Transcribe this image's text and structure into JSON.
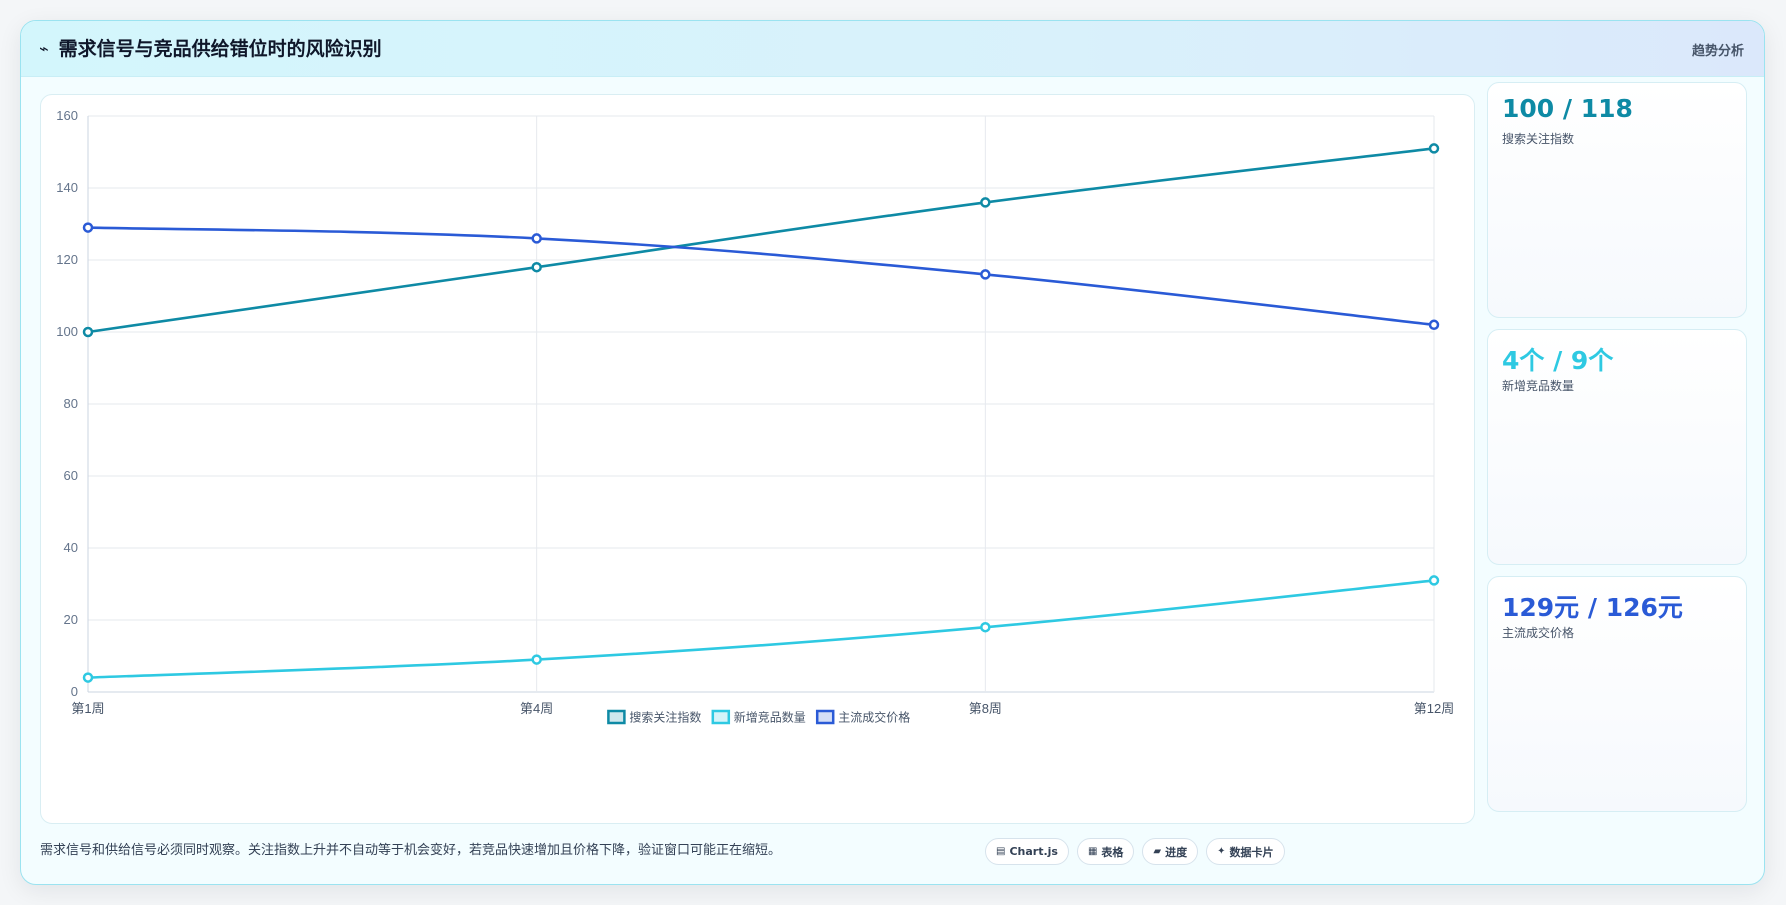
{
  "header": {
    "icon": "sparkline-icon",
    "title": "需求信号与竞品供给错位时的风险识别",
    "tag": "趋势分析"
  },
  "chart_data": {
    "type": "line",
    "categories": [
      "第1周",
      "第4周",
      "第8周",
      "第12周"
    ],
    "ylim": [
      0,
      160
    ],
    "yticks": [
      0,
      20,
      40,
      60,
      80,
      100,
      120,
      140,
      160
    ],
    "grid": true,
    "legend_position": "bottom",
    "series": [
      {
        "name": "搜索关注指数",
        "values": [
          100,
          118,
          136,
          151
        ],
        "color": "#0e8aa5"
      },
      {
        "name": "新增竞品数量",
        "values": [
          4,
          9,
          18,
          31
        ],
        "color": "#2ec9e2"
      },
      {
        "name": "主流成交价格",
        "values": [
          129,
          126,
          116,
          102
        ],
        "color": "#2a5ad6"
      }
    ]
  },
  "kpis": [
    {
      "value": "100 / 118",
      "label": "搜索关注指数",
      "color": "#0e8aa5"
    },
    {
      "value": "4个 / 9个",
      "label": "新增竞品数量",
      "color": "#2ec9e2"
    },
    {
      "value": "129元 / 126元",
      "label": "主流成交价格",
      "color": "#2a5ad6"
    }
  ],
  "footer": {
    "note": "需求信号和供给信号必须同时观察。关注指数上升并不自动等于机会变好，若竞品快速增加且价格下降，验证窗口可能正在缩短。",
    "badges": [
      {
        "icon": "chart-icon",
        "glyph": "▤",
        "label": "Chart.js"
      },
      {
        "icon": "table-icon",
        "glyph": "▦",
        "label": "表格"
      },
      {
        "icon": "progress-icon",
        "glyph": "▰",
        "label": "进度"
      },
      {
        "icon": "card-icon",
        "glyph": "✦",
        "label": "数据卡片"
      }
    ]
  }
}
